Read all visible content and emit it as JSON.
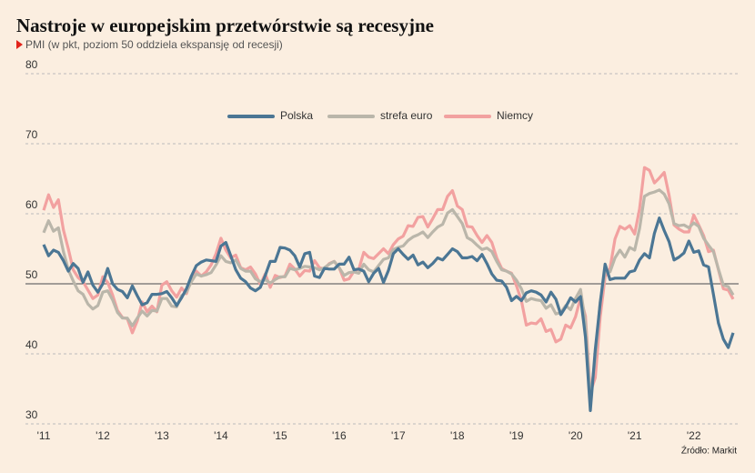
{
  "chart_data": {
    "type": "line",
    "title": "Nastroje w europejskim przetwórstwie są recesyjne",
    "subtitle": "PMI (w pkt, poziom 50 oddziela ekspansję od recesji)",
    "source": "Źródło: Markit",
    "categories": [
      "'11",
      null,
      null,
      null,
      null,
      null,
      null,
      null,
      null,
      null,
      null,
      null,
      "'12",
      null,
      null,
      null,
      null,
      null,
      null,
      null,
      null,
      null,
      null,
      null,
      "'13",
      null,
      null,
      null,
      null,
      null,
      null,
      null,
      null,
      null,
      null,
      null,
      "'14",
      null,
      null,
      null,
      null,
      null,
      null,
      null,
      null,
      null,
      null,
      null,
      "'15",
      null,
      null,
      null,
      null,
      null,
      null,
      null,
      null,
      null,
      null,
      null,
      "'16",
      null,
      null,
      null,
      null,
      null,
      null,
      null,
      null,
      null,
      null,
      null,
      "'17",
      null,
      null,
      null,
      null,
      null,
      null,
      null,
      null,
      null,
      null,
      null,
      "'18",
      null,
      null,
      null,
      null,
      null,
      null,
      null,
      null,
      null,
      null,
      null,
      "'19",
      null,
      null,
      null,
      null,
      null,
      null,
      null,
      null,
      null,
      null,
      null,
      "'20",
      null,
      null,
      null,
      null,
      null,
      null,
      null,
      null,
      null,
      null,
      null,
      "'21",
      null,
      null,
      null,
      null,
      null,
      null,
      null,
      null,
      null,
      null,
      null,
      "'22",
      null,
      null,
      null,
      null,
      null,
      null,
      null,
      null
    ],
    "series": [
      {
        "name": "Polska",
        "color": "#4b7694",
        "values": [
          55.6,
          54.0,
          54.8,
          54.5,
          53.3,
          51.8,
          52.9,
          52.2,
          50.2,
          51.7,
          49.8,
          48.8,
          50.0,
          52.2,
          50.0,
          49.2,
          48.9,
          48.0,
          49.7,
          48.3,
          47.0,
          47.3,
          48.5,
          48.5,
          48.6,
          48.9,
          48.0,
          46.9,
          48.0,
          49.3,
          51.1,
          52.6,
          53.1,
          53.4,
          53.3,
          53.2,
          55.4,
          55.9,
          54.0,
          52.0,
          50.8,
          50.3,
          49.4,
          49.0,
          49.5,
          51.2,
          53.2,
          53.2,
          55.2,
          55.1,
          54.8,
          54.0,
          52.4,
          54.3,
          54.5,
          51.1,
          50.9,
          52.2,
          52.1,
          52.1,
          52.8,
          52.8,
          53.8,
          52.0,
          52.1,
          51.8,
          50.3,
          51.5,
          52.2,
          50.2,
          51.9,
          54.3,
          55.0,
          54.2,
          53.5,
          54.1,
          52.7,
          53.1,
          52.3,
          52.9,
          53.7,
          53.4,
          54.2,
          55.0,
          54.6,
          53.7,
          53.7,
          53.9,
          53.3,
          54.2,
          52.9,
          51.4,
          50.5,
          50.4,
          49.5,
          47.6,
          48.2,
          47.6,
          48.7,
          49.0,
          48.8,
          48.4,
          47.4,
          48.8,
          47.8,
          45.6,
          46.7,
          48.0,
          47.4,
          48.2,
          42.4,
          31.9,
          40.6,
          47.2,
          52.8,
          50.6,
          50.8,
          50.8,
          50.8,
          51.7,
          51.9,
          53.4,
          54.3,
          53.7,
          57.2,
          59.4,
          57.6,
          56.0,
          53.4,
          53.8,
          54.4,
          56.1,
          54.5,
          54.7,
          52.7,
          52.4,
          48.5,
          44.4,
          42.1,
          40.9,
          43.0
        ]
      },
      {
        "name": "strefa euro",
        "color": "#bab6aa",
        "values": [
          57.3,
          59.0,
          57.5,
          58.0,
          54.6,
          52.0,
          50.4,
          49.0,
          48.5,
          47.1,
          46.4,
          46.9,
          48.8,
          49.0,
          47.7,
          45.9,
          45.1,
          45.1,
          44.0,
          45.1,
          46.1,
          45.4,
          46.2,
          46.1,
          47.9,
          47.9,
          46.8,
          46.7,
          48.3,
          48.8,
          50.3,
          51.4,
          51.1,
          51.3,
          51.6,
          52.7,
          54.0,
          53.2,
          53.0,
          53.4,
          52.2,
          51.8,
          51.8,
          50.7,
          50.3,
          50.6,
          50.1,
          50.6,
          51.0,
          51.0,
          52.2,
          52.0,
          52.2,
          52.5,
          52.4,
          52.3,
          52.0,
          52.3,
          52.8,
          53.2,
          52.3,
          51.2,
          51.6,
          51.7,
          51.5,
          52.8,
          52.0,
          51.7,
          52.6,
          53.5,
          53.7,
          54.9,
          55.2,
          55.4,
          56.2,
          56.7,
          57.0,
          57.4,
          56.6,
          57.4,
          58.1,
          58.5,
          60.1,
          60.6,
          59.6,
          58.6,
          56.6,
          56.2,
          55.5,
          54.9,
          55.1,
          54.6,
          53.2,
          52.0,
          51.8,
          51.4,
          50.5,
          49.3,
          47.5,
          47.9,
          47.7,
          47.6,
          46.5,
          47.0,
          45.7,
          45.9,
          46.9,
          46.3,
          47.9,
          49.2,
          44.5,
          33.4,
          39.4,
          47.4,
          51.8,
          51.7,
          53.7,
          54.8,
          53.8,
          55.2,
          54.8,
          57.9,
          62.5,
          62.9,
          63.1,
          63.4,
          62.8,
          61.4,
          58.6,
          58.3,
          58.4,
          58.0,
          58.7,
          58.2,
          56.5,
          55.5,
          54.6,
          52.1,
          49.8,
          49.6,
          48.4
        ]
      },
      {
        "name": "Niemcy",
        "color": "#f2a1a0",
        "values": [
          60.5,
          62.7,
          60.9,
          62.0,
          57.7,
          55.0,
          52.0,
          50.9,
          50.3,
          49.1,
          47.9,
          48.4,
          51.0,
          50.2,
          48.4,
          46.2,
          45.2,
          45.0,
          43.0,
          44.7,
          47.4,
          46.0,
          46.8,
          46.0,
          49.8,
          50.3,
          49.0,
          48.1,
          49.4,
          48.6,
          50.7,
          51.8,
          51.1,
          51.7,
          52.7,
          54.3,
          56.5,
          54.8,
          53.7,
          54.1,
          52.3,
          52.0,
          52.4,
          51.4,
          49.9,
          51.4,
          49.5,
          51.2,
          50.9,
          51.1,
          52.8,
          52.1,
          51.1,
          51.9,
          51.8,
          53.3,
          52.3,
          52.1,
          52.9,
          53.2,
          52.3,
          50.5,
          50.7,
          51.8,
          52.1,
          54.5,
          53.8,
          53.6,
          54.3,
          55.0,
          54.3,
          55.6,
          56.4,
          56.8,
          58.3,
          58.2,
          59.5,
          59.6,
          58.1,
          59.3,
          60.6,
          60.6,
          62.5,
          63.3,
          61.1,
          60.6,
          58.2,
          58.1,
          56.9,
          55.9,
          56.9,
          55.9,
          53.7,
          52.2,
          51.8,
          51.5,
          49.7,
          47.6,
          44.1,
          44.4,
          44.3,
          45.0,
          43.2,
          43.5,
          41.7,
          42.1,
          44.1,
          43.7,
          45.3,
          48.0,
          45.4,
          34.5,
          36.6,
          45.2,
          51.0,
          52.2,
          56.4,
          58.2,
          57.8,
          58.3,
          57.1,
          60.7,
          66.6,
          66.2,
          64.4,
          65.1,
          65.9,
          62.6,
          58.4,
          57.8,
          57.4,
          57.4,
          59.8,
          58.4,
          56.9,
          54.6,
          54.8,
          52.0,
          49.3,
          49.1,
          47.8
        ]
      }
    ],
    "ylim": [
      30,
      80
    ],
    "yticks": [
      30,
      40,
      50,
      60,
      70,
      80
    ],
    "grid": true,
    "hline": 50,
    "legend": "top"
  }
}
